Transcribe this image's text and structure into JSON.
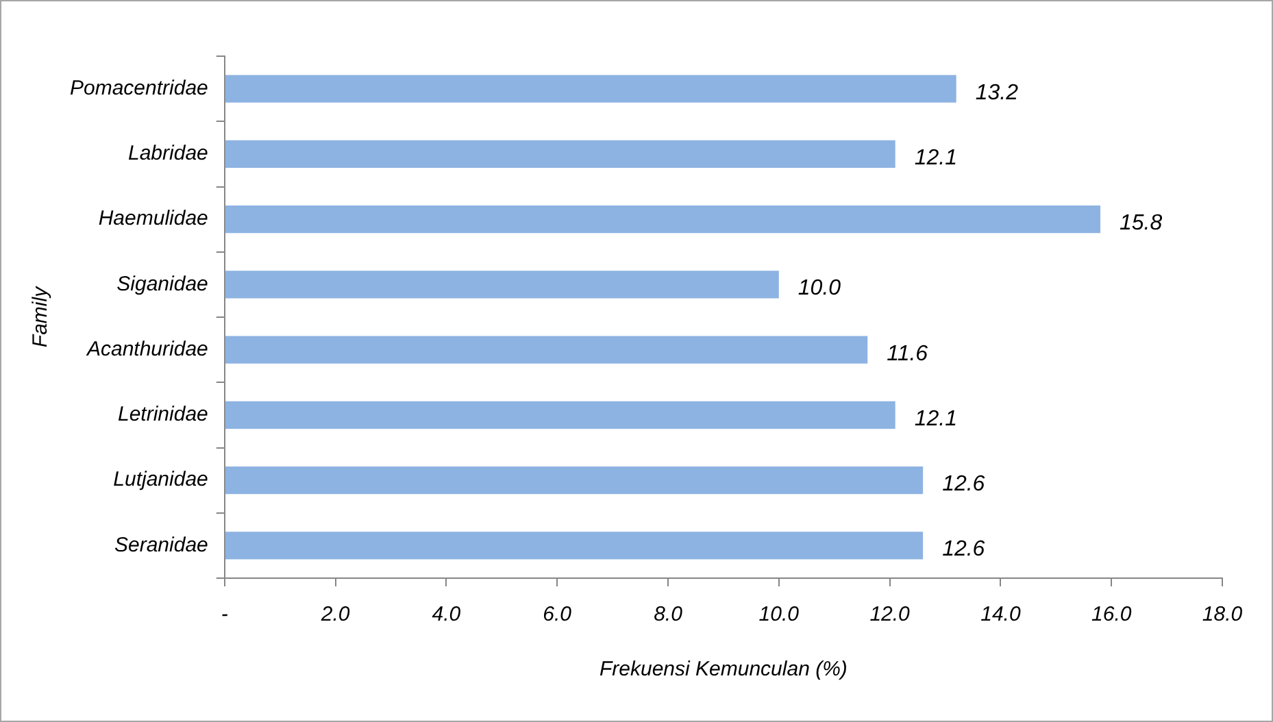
{
  "chart_data": {
    "type": "bar",
    "orientation": "horizontal",
    "xlabel": "Frekuensi Kemunculan (%)",
    "ylabel": "Family",
    "categories": [
      "Pomacentridae",
      "Labridae",
      "Haemulidae",
      "Siganidae",
      "Acanthuridae",
      "Letrinidae",
      "Lutjanidae",
      "Seranidae"
    ],
    "values": [
      13.2,
      12.1,
      15.8,
      10.0,
      11.6,
      12.1,
      12.6,
      12.6
    ],
    "color": "#8db3e2",
    "xlim": [
      0,
      18
    ],
    "xticks": [
      {
        "value": 0,
        "label": "-"
      },
      {
        "value": 2,
        "label": "2.0"
      },
      {
        "value": 4,
        "label": "4.0"
      },
      {
        "value": 6,
        "label": "6.0"
      },
      {
        "value": 8,
        "label": "8.0"
      },
      {
        "value": 10,
        "label": "10.0"
      },
      {
        "value": 12,
        "label": "12.0"
      },
      {
        "value": 14,
        "label": "14.0"
      },
      {
        "value": 16,
        "label": "16.0"
      },
      {
        "value": 18,
        "label": "18.0"
      }
    ],
    "value_labels": [
      "13.2",
      "12.1",
      "15.8",
      "10.0",
      "11.6",
      "12.1",
      "12.6",
      "12.6"
    ],
    "grid": false,
    "legend": false
  }
}
